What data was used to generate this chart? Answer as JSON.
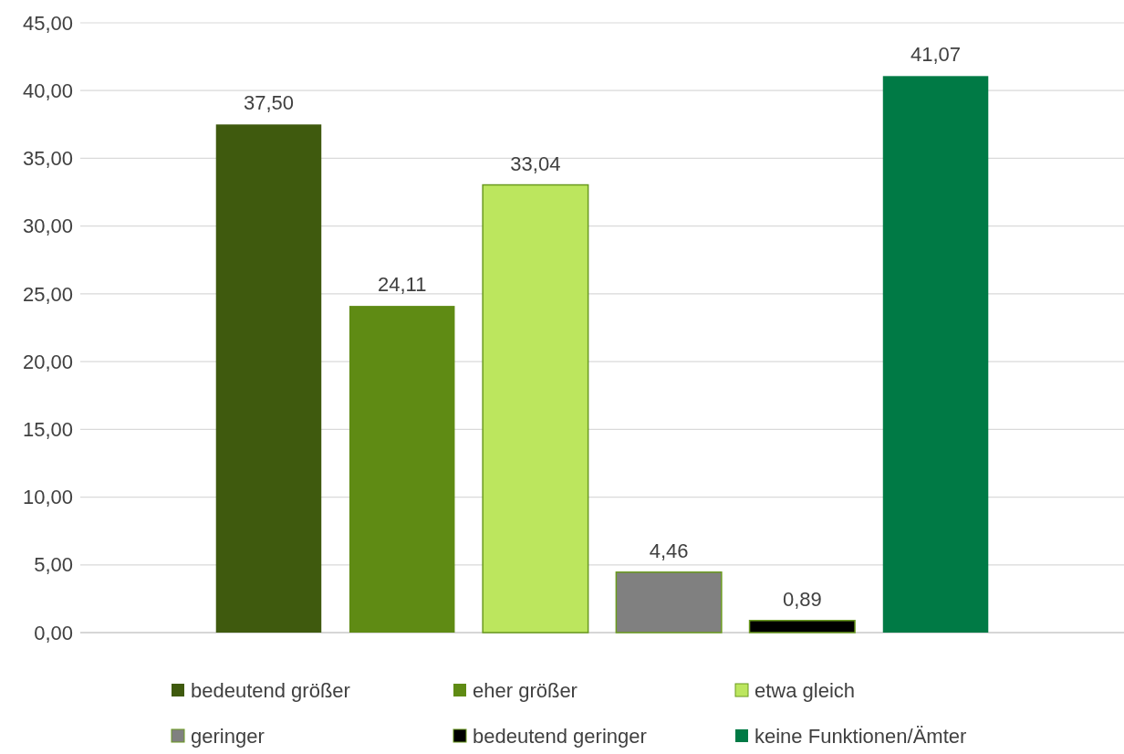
{
  "chart_data": {
    "type": "bar",
    "categories": [
      null
    ],
    "series": [
      {
        "name": "bedeutend größer",
        "color": "#3f5a0e",
        "values": [
          37.5
        ],
        "value_labels": [
          "37,50"
        ]
      },
      {
        "name": "eher größer",
        "color": "#5f8b14",
        "values": [
          24.11
        ],
        "value_labels": [
          "24,11"
        ]
      },
      {
        "name": "etwa gleich",
        "color": "#bce65e",
        "values": [
          33.04
        ],
        "value_labels": [
          "33,04"
        ]
      },
      {
        "name": "geringer",
        "color": "#808080",
        "values": [
          4.46
        ],
        "value_labels": [
          "4,46"
        ]
      },
      {
        "name": "bedeutend geringer",
        "color": "#000000",
        "values": [
          0.89
        ],
        "value_labels": [
          "0,89"
        ]
      },
      {
        "name": "keine Funktionen/Ämter",
        "color": "#007a45",
        "values": [
          41.07
        ],
        "value_labels": [
          "41,07"
        ]
      }
    ],
    "ylim": [
      0,
      45
    ],
    "yticks": [
      {
        "value": 0,
        "label": "0,00"
      },
      {
        "value": 5,
        "label": "5,00"
      },
      {
        "value": 10,
        "label": "10,00"
      },
      {
        "value": 15,
        "label": "15,00"
      },
      {
        "value": 20,
        "label": "20,00"
      },
      {
        "value": 25,
        "label": "25,00"
      },
      {
        "value": 30,
        "label": "30,00"
      },
      {
        "value": 35,
        "label": "35,00"
      },
      {
        "value": 40,
        "label": "40,00"
      },
      {
        "value": 45,
        "label": "45,00"
      }
    ],
    "grid": "y",
    "legend": "bottom"
  }
}
